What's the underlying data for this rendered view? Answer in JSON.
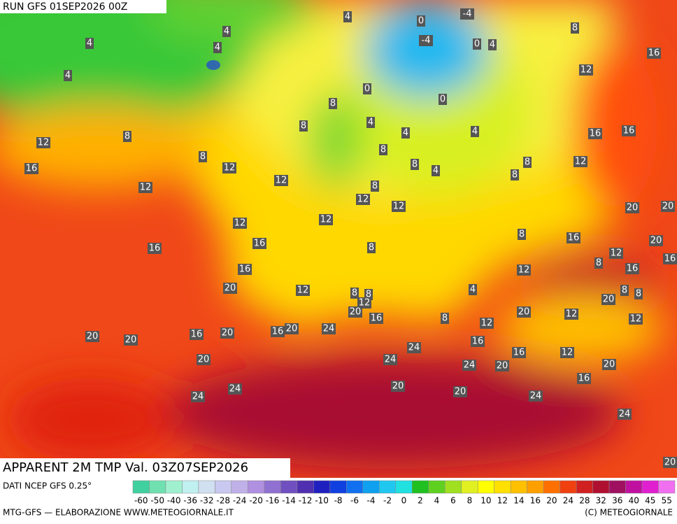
{
  "header": {
    "run": "RUN GFS 01SEP2026 00Z"
  },
  "map": {
    "title": "APPARENT 2M TMP Val. 03Z07SEP2026",
    "labels": [
      "4",
      "0",
      "-4",
      "8",
      "4",
      "4",
      "4",
      "-4",
      "0",
      "4",
      "16",
      "4",
      "12",
      "0",
      "0",
      "8",
      "8",
      "4",
      "4",
      "4",
      "8",
      "16",
      "16",
      "12",
      "8",
      "8",
      "8",
      "8",
      "12",
      "16",
      "12",
      "4",
      "8",
      "12",
      "12",
      "8",
      "12",
      "12",
      "20",
      "20",
      "12",
      "12",
      "8",
      "16",
      "20",
      "16",
      "16",
      "8",
      "12",
      "8",
      "16",
      "16",
      "12",
      "16",
      "20",
      "12",
      "8",
      "4",
      "8",
      "8",
      "8",
      "12",
      "20",
      "20",
      "12",
      "20",
      "16",
      "8",
      "12",
      "12",
      "24",
      "20",
      "16",
      "20",
      "16",
      "20",
      "20",
      "16",
      "24",
      "16",
      "12",
      "20",
      "24",
      "24",
      "20",
      "20",
      "16",
      "20",
      "24",
      "20",
      "24",
      "24",
      "24",
      "20"
    ]
  },
  "footer": {
    "source": "DATI NCEP GFS 0.25°",
    "credit_left": "MTG-GFS — ELABORAZIONE WWW.METEOGIORNALE.IT",
    "credit_right": "(C) METEOGIORNALE"
  },
  "colorbar": {
    "labels": [
      "-60",
      "-50",
      "-40",
      "-36",
      "-32",
      "-28",
      "-24",
      "-20",
      "-16",
      "-14",
      "-12",
      "-10",
      "-8",
      "-6",
      "-4",
      "-2",
      "0",
      "2",
      "4",
      "6",
      "8",
      "10",
      "12",
      "14",
      "16",
      "20",
      "24",
      "28",
      "32",
      "36",
      "40",
      "45",
      "55"
    ],
    "colors": [
      "#40d0a0",
      "#70e0b0",
      "#a0f0d0",
      "#c0f0f0",
      "#d0e0f0",
      "#c8c8f0",
      "#c0b0e8",
      "#b090e0",
      "#9070d0",
      "#7050c0",
      "#5030b0",
      "#2020c0",
      "#1040e0",
      "#1070f0",
      "#10a0f0",
      "#20c8f0",
      "#20e0e0",
      "#20c020",
      "#60d020",
      "#a0e020",
      "#e0f020",
      "#ffff00",
      "#ffe000",
      "#ffc000",
      "#ffa000",
      "#ff7000",
      "#f04010",
      "#d02020",
      "#b01030",
      "#a01060",
      "#c010a0",
      "#e020d0",
      "#f070f0"
    ]
  }
}
